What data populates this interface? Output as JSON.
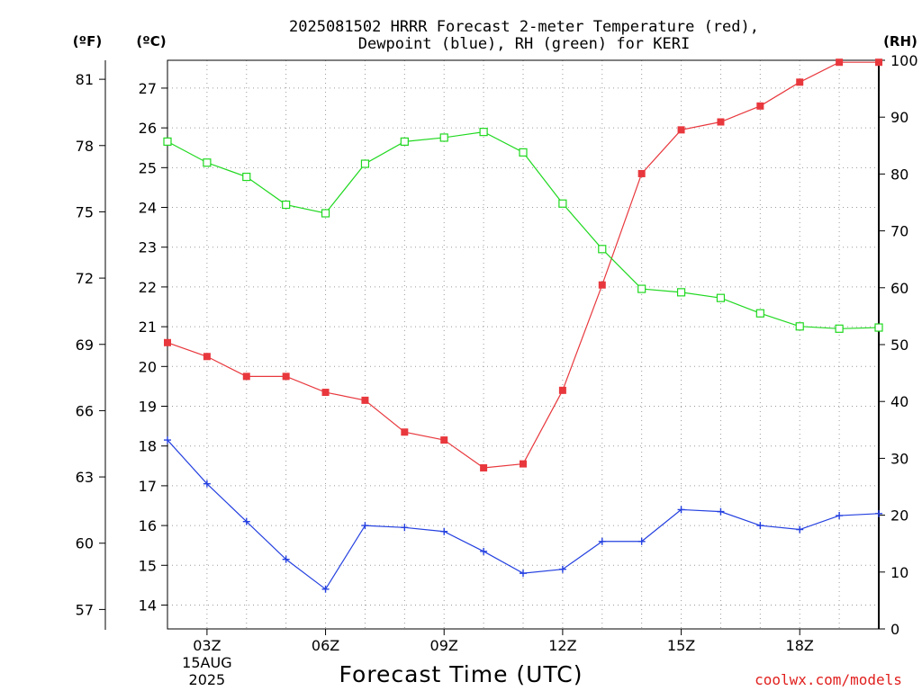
{
  "chart_data": {
    "type": "line",
    "title_line1": "2025081502 HRRR Forecast 2-meter Temperature (red),",
    "title_line2": "Dewpoint (blue), RH (green) for KERI",
    "xlabel": "Forecast Time (UTC)",
    "credit": "coolwx.com/models",
    "unit_labels": {
      "fahrenheit": "(ºF)",
      "celsius": "(ºC)",
      "rh": "(RH)"
    },
    "x_hours": [
      2,
      3,
      4,
      5,
      6,
      7,
      8,
      9,
      10,
      11,
      12,
      13,
      14,
      15,
      16,
      17,
      18,
      19,
      20
    ],
    "xlim": [
      2,
      20
    ],
    "x_ticks": [
      {
        "hour": 3,
        "label": "03Z",
        "sub1": "15AUG",
        "sub2": "2025"
      },
      {
        "hour": 6,
        "label": "06Z",
        "sub1": "",
        "sub2": ""
      },
      {
        "hour": 9,
        "label": "09Z",
        "sub1": "",
        "sub2": ""
      },
      {
        "hour": 12,
        "label": "12Z",
        "sub1": "",
        "sub2": ""
      },
      {
        "hour": 15,
        "label": "15Z",
        "sub1": "",
        "sub2": ""
      },
      {
        "hour": 18,
        "label": "18Z",
        "sub1": "",
        "sub2": ""
      }
    ],
    "celsius_axis": {
      "lim": [
        13.4,
        27.7
      ],
      "ticks": [
        14,
        15,
        16,
        17,
        18,
        19,
        20,
        21,
        22,
        23,
        24,
        25,
        26,
        27
      ]
    },
    "fahrenheit_axis": {
      "ticks": [
        57,
        60,
        63,
        66,
        69,
        72,
        75,
        78,
        81
      ]
    },
    "rh_axis": {
      "lim": [
        0,
        100
      ],
      "ticks": [
        0,
        10,
        20,
        30,
        40,
        50,
        60,
        70,
        80,
        90,
        100
      ]
    },
    "grid": true,
    "series": [
      {
        "name": "2-meter Temperature (red)",
        "axis": "celsius",
        "color": "#e8383d",
        "marker": "filled-square",
        "values": [
          20.6,
          20.25,
          19.75,
          19.75,
          19.35,
          19.15,
          18.35,
          18.15,
          17.45,
          17.55,
          19.4,
          22.05,
          24.85,
          25.95,
          26.15,
          26.55,
          27.15,
          27.65,
          27.65
        ]
      },
      {
        "name": "Dewpoint (blue)",
        "axis": "celsius",
        "color": "#2440e0",
        "marker": "plus",
        "values": [
          18.15,
          17.05,
          16.1,
          15.15,
          14.4,
          16.0,
          15.95,
          15.85,
          15.35,
          14.8,
          14.9,
          15.6,
          15.6,
          16.4,
          16.35,
          16.0,
          15.9,
          16.25,
          16.3
        ]
      },
      {
        "name": "RH (green)",
        "axis": "rh",
        "color": "#1fd81f",
        "marker": "open-square",
        "values": [
          85.7,
          82.0,
          79.5,
          74.6,
          73.1,
          81.8,
          85.7,
          86.4,
          87.4,
          83.8,
          74.8,
          66.8,
          59.8,
          59.2,
          58.2,
          55.5,
          53.2,
          52.8,
          53.0
        ]
      }
    ]
  }
}
